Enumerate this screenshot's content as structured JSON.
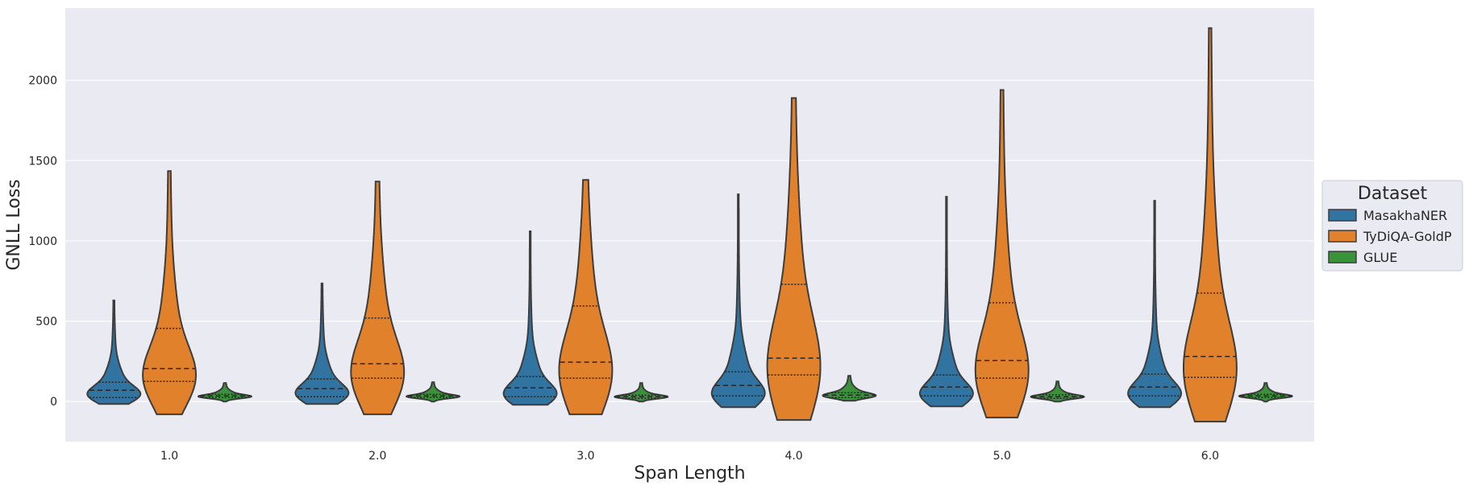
{
  "chart_data": {
    "type": "violin",
    "title": "",
    "xlabel": "Span Length",
    "ylabel": "GNLL Loss",
    "categories": [
      "1.0",
      "2.0",
      "3.0",
      "4.0",
      "5.0",
      "6.0"
    ],
    "ylim": [
      -250,
      2450
    ],
    "yticks": [
      0,
      500,
      1000,
      1500,
      2000
    ],
    "grid": true,
    "legend": {
      "title": "Dataset",
      "placement": "right"
    },
    "series": [
      {
        "name": "MasakhaNER",
        "color": "#3274a1",
        "violins": [
          {
            "min": -15,
            "max": 630,
            "q1": 25,
            "median": 70,
            "q3": 120,
            "mode": 40
          },
          {
            "min": -15,
            "max": 735,
            "q1": 30,
            "median": 80,
            "q3": 140,
            "mode": 45
          },
          {
            "min": -20,
            "max": 1060,
            "q1": 30,
            "median": 85,
            "q3": 155,
            "mode": 40
          },
          {
            "min": -35,
            "max": 1290,
            "q1": 35,
            "median": 100,
            "q3": 185,
            "mode": 40
          },
          {
            "min": -30,
            "max": 1275,
            "q1": 35,
            "median": 90,
            "q3": 165,
            "mode": 40
          },
          {
            "min": -35,
            "max": 1250,
            "q1": 35,
            "median": 90,
            "q3": 170,
            "mode": 40
          }
        ]
      },
      {
        "name": "TyDiQA-GoldP",
        "color": "#e1812c",
        "violins": [
          {
            "min": -80,
            "max": 1435,
            "q1": 125,
            "median": 205,
            "q3": 455,
            "mode": 140
          },
          {
            "min": -80,
            "max": 1370,
            "q1": 145,
            "median": 235,
            "q3": 520,
            "mode": 155
          },
          {
            "min": -80,
            "max": 1380,
            "q1": 145,
            "median": 245,
            "q3": 595,
            "mode": 160
          },
          {
            "min": -115,
            "max": 1890,
            "q1": 165,
            "median": 270,
            "q3": 730,
            "mode": 175
          },
          {
            "min": -100,
            "max": 1940,
            "q1": 145,
            "median": 255,
            "q3": 615,
            "mode": 160
          },
          {
            "min": -125,
            "max": 2325,
            "q1": 150,
            "median": 280,
            "q3": 675,
            "mode": 170
          }
        ]
      },
      {
        "name": "GLUE",
        "color": "#3a923a",
        "violins": [
          {
            "min": 0,
            "max": 115,
            "q1": 25,
            "median": 35,
            "q3": 45,
            "mode": 30
          },
          {
            "min": 0,
            "max": 120,
            "q1": 25,
            "median": 35,
            "q3": 45,
            "mode": 30
          },
          {
            "min": 0,
            "max": 115,
            "q1": 20,
            "median": 30,
            "q3": 40,
            "mode": 28
          },
          {
            "min": 5,
            "max": 160,
            "q1": 25,
            "median": 40,
            "q3": 55,
            "mode": 35
          },
          {
            "min": 0,
            "max": 125,
            "q1": 20,
            "median": 30,
            "q3": 42,
            "mode": 28
          },
          {
            "min": 0,
            "max": 115,
            "q1": 25,
            "median": 35,
            "q3": 45,
            "mode": 32
          }
        ]
      }
    ]
  }
}
